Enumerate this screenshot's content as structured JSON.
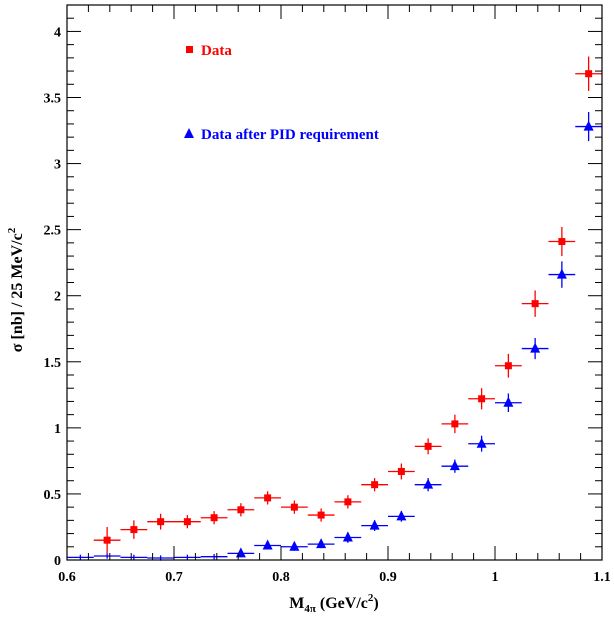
{
  "chart_data": {
    "type": "scatter",
    "xlabel_main": "M",
    "xlabel_sub": "4π",
    "xlabel_rest": " (GeV/c",
    "xlabel_sup": "2",
    "xlabel_close": ")",
    "ylabel_main": "σ [nb] / 25 MeV/c",
    "ylabel_sup": "2",
    "xlim": [
      0.6,
      1.1
    ],
    "ylim": [
      0,
      4.2
    ],
    "xticks": [
      0.6,
      0.7,
      0.8,
      0.9,
      1.0,
      1.1
    ],
    "xtick_labels": [
      "0.6",
      "0.7",
      "0.8",
      "0.9",
      "1",
      "1.1"
    ],
    "yticks": [
      0,
      0.5,
      1.0,
      1.5,
      2.0,
      2.5,
      3.0,
      3.5,
      4.0
    ],
    "ytick_labels": [
      "0",
      "0.5",
      "1",
      "1.5",
      "2",
      "2.5",
      "3",
      "3.5",
      "4"
    ],
    "bin_half_width": 0.0125,
    "legend_placement": "top-left",
    "series": [
      {
        "name": "Data",
        "color": "#ff0000",
        "marker": "square",
        "x": [
          0.6375,
          0.6625,
          0.6875,
          0.7125,
          0.7375,
          0.7625,
          0.7875,
          0.8125,
          0.8375,
          0.8625,
          0.8875,
          0.9125,
          0.9375,
          0.9625,
          0.9875,
          1.0125,
          1.0375,
          1.0625,
          1.0875
        ],
        "y": [
          0.15,
          0.23,
          0.29,
          0.29,
          0.32,
          0.38,
          0.47,
          0.4,
          0.34,
          0.44,
          0.57,
          0.67,
          0.86,
          1.03,
          1.22,
          1.47,
          1.94,
          2.41,
          3.68
        ],
        "yerr": [
          0.1,
          0.07,
          0.06,
          0.05,
          0.05,
          0.05,
          0.05,
          0.05,
          0.05,
          0.05,
          0.05,
          0.06,
          0.06,
          0.07,
          0.08,
          0.09,
          0.1,
          0.11,
          0.13
        ]
      },
      {
        "name": "Data after PID requirement",
        "color": "#0000ff",
        "marker": "triangle",
        "x": [
          0.6125,
          0.6375,
          0.6625,
          0.6875,
          0.7125,
          0.7375,
          0.7625,
          0.7875,
          0.8125,
          0.8375,
          0.8625,
          0.8875,
          0.9125,
          0.9375,
          0.9625,
          0.9875,
          1.0125,
          1.0375,
          1.0625,
          1.0875
        ],
        "y": [
          0.02,
          0.03,
          0.02,
          0.015,
          0.02,
          0.025,
          0.05,
          0.11,
          0.1,
          0.12,
          0.17,
          0.26,
          0.33,
          0.57,
          0.71,
          0.88,
          1.19,
          1.6,
          2.16,
          3.28
        ],
        "yerr": [
          0.02,
          0.02,
          0.02,
          0.02,
          0.02,
          0.02,
          0.03,
          0.03,
          0.03,
          0.03,
          0.04,
          0.04,
          0.04,
          0.05,
          0.05,
          0.06,
          0.07,
          0.08,
          0.1,
          0.11
        ],
        "marker_from_index": 6
      }
    ]
  }
}
